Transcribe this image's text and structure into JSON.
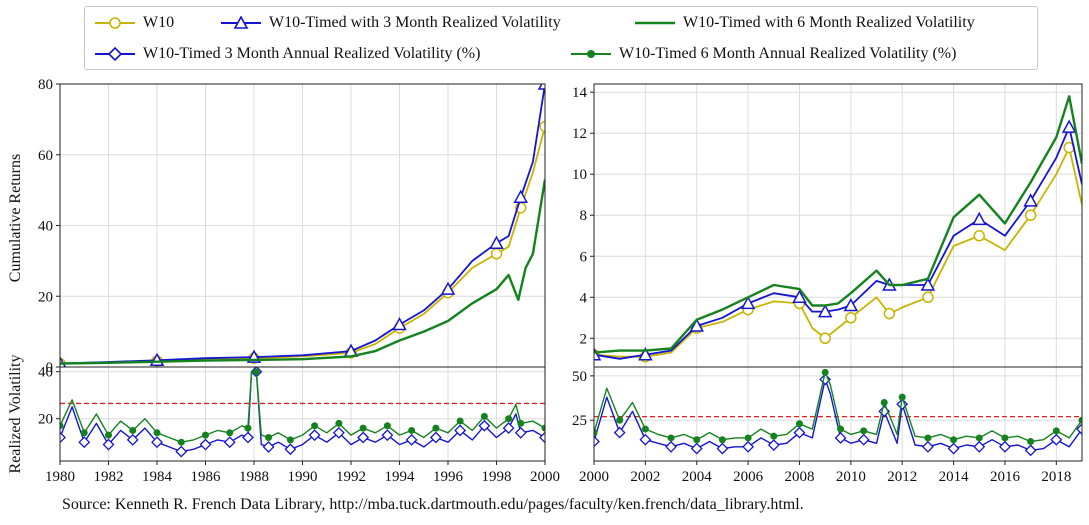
{
  "colors": {
    "w10": "#c8b400",
    "timed3": "#1414d2",
    "timed6": "#14821e",
    "threshold": "#e02020",
    "grid": "#dcdcdc"
  },
  "legend": {
    "items": [
      {
        "label": "W10",
        "marker": "circle",
        "color": "#c8b400"
      },
      {
        "label": "W10-Timed with 3 Month Realized Volatility",
        "marker": "triangle",
        "color": "#1414d2"
      },
      {
        "label": "W10-Timed with 6 Month Realized Volatility",
        "marker": "none",
        "color": "#14821e"
      },
      {
        "label": "W10-Timed 3 Month Annual Realized Volatility (%)",
        "marker": "diamond",
        "color": "#1414d2"
      },
      {
        "label": "W10-Timed 6 Month Annual Realized Volatility (%)",
        "marker": "dot",
        "color": "#14821e"
      }
    ]
  },
  "source": "Source: Kenneth R. French Data Library, http://mba.tuck.dartmouth.edu/pages/faculty/ken.french/data_library.html.",
  "chart_data": [
    {
      "type": "line",
      "panel": "left-top",
      "ylabel": "Cumulative Returns",
      "xlim": [
        1980,
        2000
      ],
      "ylim": [
        0,
        80
      ],
      "yticks": [
        0,
        20,
        40,
        60,
        80
      ],
      "series": [
        {
          "name": "W10",
          "x": [
            1980,
            1982,
            1984,
            1986,
            1988,
            1990,
            1992,
            1993,
            1994,
            1995,
            1996,
            1997,
            1998,
            1998.5,
            1999,
            1999.5,
            2000
          ],
          "y": [
            1,
            1.3,
            1.7,
            2.3,
            2.5,
            3,
            4,
            6.5,
            11,
            15,
            21,
            28,
            32,
            34,
            45,
            55,
            68
          ]
        },
        {
          "name": "W10-Timed with 3 Month Realized Volatility",
          "x": [
            1980,
            1982,
            1984,
            1986,
            1988,
            1990,
            1992,
            1993,
            1994,
            1995,
            1996,
            1997,
            1998,
            1998.5,
            1999,
            1999.5,
            2000
          ],
          "y": [
            1,
            1.4,
            1.9,
            2.5,
            2.8,
            3.3,
            4.5,
            7.5,
            12,
            16,
            22,
            30,
            35,
            37,
            48,
            58,
            80
          ]
        },
        {
          "name": "W10-Timed with 6 Month Realized Volatility",
          "x": [
            1980,
            1982,
            1984,
            1986,
            1988,
            1990,
            1992,
            1993,
            1994,
            1995,
            1996,
            1997,
            1998,
            1998.5,
            1998.9,
            1999.2,
            1999.5,
            2000
          ],
          "y": [
            1,
            1.2,
            1.5,
            1.8,
            2,
            2.2,
            3,
            4.5,
            7.5,
            10,
            13,
            18,
            22,
            26,
            19,
            28,
            32,
            53
          ]
        }
      ]
    },
    {
      "type": "line",
      "panel": "left-bottom",
      "ylabel": "Realized Volatility",
      "xlim": [
        1980,
        2000
      ],
      "ylim": [
        2,
        42
      ],
      "yticks": [
        20,
        40
      ],
      "xticks": [
        1980,
        1982,
        1984,
        1986,
        1988,
        1990,
        1992,
        1994,
        1996,
        1998,
        2000
      ],
      "threshold": 26.5,
      "series": [
        {
          "name": "W10-Timed 3 Month Annual Realized Volatility (%)",
          "x": [
            1980,
            1980.5,
            1981,
            1981.5,
            1982,
            1982.5,
            1983,
            1983.5,
            1984,
            1984.5,
            1985,
            1985.5,
            1986,
            1986.5,
            1987,
            1987.5,
            1987.75,
            1987.9,
            1988.1,
            1988.3,
            1988.6,
            1989,
            1989.5,
            1990,
            1990.5,
            1991,
            1991.5,
            1992,
            1992.5,
            1993,
            1993.5,
            1994,
            1994.5,
            1995,
            1995.5,
            1996,
            1996.5,
            1997,
            1997.5,
            1998,
            1998.5,
            1998.8,
            1999,
            1999.5,
            2000
          ],
          "y": [
            12,
            25,
            10,
            18,
            9,
            15,
            11,
            16,
            10,
            8,
            6,
            7,
            9,
            11,
            10,
            13,
            12,
            40,
            40,
            9,
            8,
            10,
            7,
            9,
            13,
            10,
            14,
            9,
            12,
            10,
            13,
            9,
            11,
            8,
            12,
            10,
            15,
            11,
            17,
            12,
            16,
            22,
            14,
            15,
            12
          ]
        },
        {
          "name": "W10-Timed 6 Month Annual Realized Volatility (%)",
          "x": [
            1980,
            1980.5,
            1981,
            1981.5,
            1982,
            1982.5,
            1983,
            1983.5,
            1984,
            1984.5,
            1985,
            1985.5,
            1986,
            1986.5,
            1987,
            1987.5,
            1987.75,
            1987.9,
            1988.1,
            1988.3,
            1988.6,
            1989,
            1989.5,
            1990,
            1990.5,
            1991,
            1991.5,
            1992,
            1992.5,
            1993,
            1993.5,
            1994,
            1994.5,
            1995,
            1995.5,
            1996,
            1996.5,
            1997,
            1997.5,
            1998,
            1998.5,
            1998.8,
            1999,
            1999.5,
            2000
          ],
          "y": [
            17,
            28,
            14,
            22,
            13,
            19,
            15,
            20,
            14,
            12,
            10,
            11,
            13,
            15,
            14,
            17,
            16,
            40,
            40,
            13,
            12,
            14,
            11,
            13,
            17,
            14,
            18,
            13,
            16,
            14,
            17,
            13,
            15,
            12,
            16,
            14,
            19,
            15,
            21,
            16,
            20,
            26,
            18,
            19,
            16
          ]
        }
      ]
    },
    {
      "type": "line",
      "panel": "right-top",
      "xlim": [
        2000,
        2019
      ],
      "ylim": [
        0.6,
        14.4
      ],
      "yticks": [
        2,
        4,
        6,
        8,
        10,
        12,
        14
      ],
      "series": [
        {
          "name": "W10",
          "x": [
            2000,
            2001,
            2002,
            2003,
            2004,
            2005,
            2006,
            2007,
            2008,
            2008.5,
            2009,
            2009.5,
            2010,
            2011,
            2011.5,
            2012,
            2013,
            2014,
            2015,
            2016,
            2017,
            2018,
            2018.5,
            2019
          ],
          "y": [
            1.2,
            1.1,
            1.1,
            1.3,
            2.5,
            2.8,
            3.4,
            3.8,
            3.7,
            2.5,
            2,
            2.5,
            3,
            4,
            3.2,
            3.5,
            4,
            6.5,
            7,
            6.3,
            8,
            10,
            11.3,
            8.5
          ]
        },
        {
          "name": "W10-Timed with 3 Month Realized Volatility",
          "x": [
            2000,
            2001,
            2002,
            2003,
            2004,
            2005,
            2006,
            2007,
            2008,
            2008.5,
            2009,
            2009.5,
            2010,
            2011,
            2011.5,
            2012,
            2013,
            2014,
            2015,
            2016,
            2017,
            2018,
            2018.5,
            2019
          ],
          "y": [
            1.2,
            1,
            1.2,
            1.4,
            2.6,
            3,
            3.7,
            4.2,
            4,
            3.3,
            3.3,
            3.4,
            3.6,
            4.8,
            4.6,
            4.6,
            4.6,
            7,
            7.8,
            7,
            8.7,
            10.8,
            12.3,
            9.5
          ]
        },
        {
          "name": "W10-Timed with 6 Month Realized Volatility",
          "x": [
            2000,
            2001,
            2002,
            2003,
            2004,
            2005,
            2006,
            2007,
            2008,
            2008.5,
            2009,
            2009.5,
            2010,
            2011,
            2011.5,
            2012,
            2013,
            2014,
            2015,
            2016,
            2017,
            2018,
            2018.5,
            2019
          ],
          "y": [
            1.3,
            1.4,
            1.4,
            1.5,
            2.9,
            3.4,
            4,
            4.6,
            4.4,
            3.6,
            3.6,
            3.7,
            4.2,
            5.3,
            4.6,
            4.6,
            4.9,
            7.9,
            9,
            7.6,
            9.6,
            11.8,
            13.8,
            10.5
          ]
        }
      ]
    },
    {
      "type": "line",
      "panel": "right-bottom",
      "xlim": [
        2000,
        2019
      ],
      "ylim": [
        2,
        55
      ],
      "yticks": [
        25,
        50
      ],
      "xticks": [
        2000,
        2002,
        2004,
        2006,
        2008,
        2010,
        2012,
        2014,
        2016,
        2018
      ],
      "threshold": 27,
      "series": [
        {
          "name": "W10-Timed 3 Month Annual Realized Volatility (%)",
          "x": [
            2000,
            2000.5,
            2001,
            2001.5,
            2002,
            2002.5,
            2003,
            2003.5,
            2004,
            2004.5,
            2005,
            2005.5,
            2006,
            2006.5,
            2007,
            2007.5,
            2008,
            2008.5,
            2009,
            2009.2,
            2009.6,
            2010,
            2010.5,
            2011,
            2011.3,
            2011.8,
            2012,
            2012.5,
            2013,
            2013.5,
            2014,
            2014.5,
            2015,
            2015.5,
            2016,
            2016.5,
            2017,
            2017.5,
            2018,
            2018.5,
            2019
          ],
          "y": [
            13,
            38,
            18,
            30,
            14,
            12,
            10,
            12,
            9,
            13,
            9,
            10,
            10,
            15,
            11,
            12,
            18,
            15,
            48,
            40,
            15,
            12,
            14,
            12,
            30,
            12,
            34,
            11,
            10,
            12,
            9,
            11,
            10,
            14,
            10,
            11,
            8,
            9,
            14,
            10,
            20
          ]
        },
        {
          "name": "W10-Timed 6 Month Annual Realized Volatility (%)",
          "x": [
            2000,
            2000.5,
            2001,
            2001.5,
            2002,
            2002.5,
            2003,
            2003.5,
            2004,
            2004.5,
            2005,
            2005.5,
            2006,
            2006.5,
            2007,
            2007.5,
            2008,
            2008.5,
            2009,
            2009.2,
            2009.6,
            2010,
            2010.5,
            2011,
            2011.3,
            2011.8,
            2012,
            2012.5,
            2013,
            2013.5,
            2014,
            2014.5,
            2015,
            2015.5,
            2016,
            2016.5,
            2017,
            2017.5,
            2018,
            2018.5,
            2019
          ],
          "y": [
            18,
            43,
            25,
            35,
            20,
            17,
            15,
            17,
            14,
            18,
            14,
            15,
            15,
            20,
            16,
            17,
            23,
            20,
            52,
            45,
            20,
            17,
            19,
            17,
            35,
            17,
            38,
            16,
            15,
            17,
            14,
            16,
            15,
            19,
            15,
            16,
            13,
            14,
            19,
            15,
            25
          ]
        }
      ]
    }
  ]
}
